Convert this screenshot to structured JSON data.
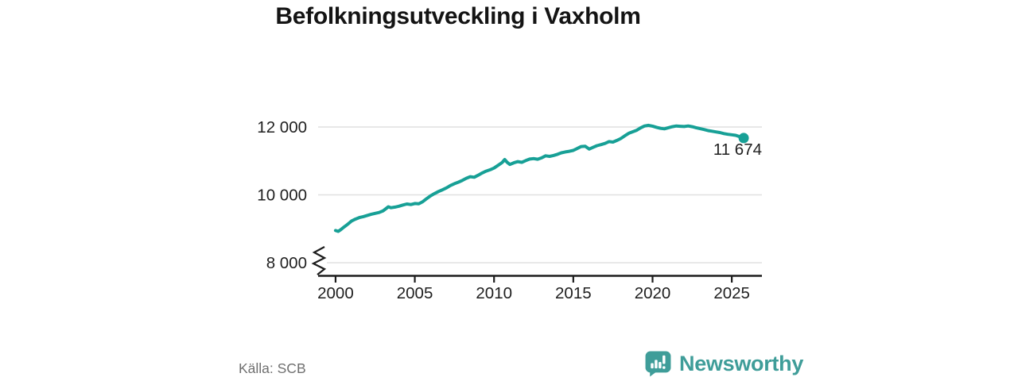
{
  "title": "Befolkningsutveckling i Vaxholm",
  "source": "Källa: SCB",
  "branding": {
    "name": "Newsworthy",
    "color": "#3f9d99"
  },
  "colors": {
    "accent": "#17a096",
    "grid": "#e0e0e0",
    "axis": "#1c1c1c",
    "label_text": "#1f1f1f",
    "annotation_text": "#1f1f1f",
    "source_text": "#707070",
    "title_text": "#141414",
    "background": "#ffffff"
  },
  "chart_data": {
    "type": "line",
    "title": "Befolkningsutveckling i Vaxholm",
    "xlabel": "",
    "ylabel": "",
    "grid": "horizontal",
    "legend": "none",
    "axis_break_at_bottom": true,
    "xlim": [
      1998.9,
      2026.9
    ],
    "ylim": [
      7626,
      12187
    ],
    "x_ticks": [
      2000,
      2005,
      2010,
      2015,
      2020,
      2025
    ],
    "y_ticks": [
      {
        "value": 8000,
        "label": "8 000"
      },
      {
        "value": 10000,
        "label": "10 000"
      },
      {
        "value": 12000,
        "label": "12 000"
      }
    ],
    "end_annotation": {
      "label": "11 674",
      "value": 11674,
      "x": 2025.75
    },
    "x": [
      2000.0,
      2000.17,
      2000.33,
      2000.5,
      2000.67,
      2000.83,
      2001.0,
      2001.25,
      2001.5,
      2001.75,
      2002.0,
      2002.25,
      2002.5,
      2002.75,
      2003.0,
      2003.17,
      2003.33,
      2003.5,
      2003.75,
      2004.0,
      2004.25,
      2004.5,
      2004.75,
      2005.0,
      2005.25,
      2005.5,
      2005.75,
      2006.0,
      2006.25,
      2006.5,
      2006.75,
      2007.0,
      2007.25,
      2007.5,
      2007.75,
      2008.0,
      2008.25,
      2008.5,
      2008.75,
      2009.0,
      2009.25,
      2009.5,
      2009.75,
      2010.0,
      2010.25,
      2010.5,
      2010.67,
      2010.83,
      2011.0,
      2011.25,
      2011.5,
      2011.75,
      2012.0,
      2012.25,
      2012.5,
      2012.75,
      2013.0,
      2013.25,
      2013.5,
      2013.75,
      2014.0,
      2014.25,
      2014.5,
      2014.75,
      2015.0,
      2015.25,
      2015.5,
      2015.75,
      2016.0,
      2016.25,
      2016.5,
      2016.75,
      2017.0,
      2017.25,
      2017.5,
      2017.75,
      2018.0,
      2018.25,
      2018.5,
      2018.75,
      2019.0,
      2019.25,
      2019.5,
      2019.75,
      2020.0,
      2020.25,
      2020.5,
      2020.75,
      2021.0,
      2021.25,
      2021.5,
      2021.75,
      2022.0,
      2022.25,
      2022.5,
      2022.75,
      2023.0,
      2023.25,
      2023.5,
      2023.75,
      2024.0,
      2024.25,
      2024.5,
      2024.75,
      2025.0,
      2025.25,
      2025.5,
      2025.75
    ],
    "y": [
      8950,
      8925,
      8975,
      9040,
      9100,
      9160,
      9225,
      9285,
      9330,
      9360,
      9395,
      9430,
      9455,
      9480,
      9530,
      9590,
      9650,
      9620,
      9640,
      9665,
      9700,
      9730,
      9715,
      9745,
      9735,
      9800,
      9890,
      9975,
      10040,
      10100,
      10150,
      10205,
      10275,
      10330,
      10375,
      10425,
      10490,
      10535,
      10520,
      10580,
      10645,
      10700,
      10740,
      10790,
      10870,
      10950,
      11040,
      10960,
      10895,
      10945,
      10980,
      10960,
      11010,
      11055,
      11070,
      11050,
      11090,
      11150,
      11135,
      11160,
      11195,
      11240,
      11265,
      11285,
      11310,
      11365,
      11425,
      11435,
      11350,
      11400,
      11450,
      11480,
      11515,
      11570,
      11555,
      11605,
      11660,
      11740,
      11815,
      11860,
      11905,
      11975,
      12030,
      12050,
      12025,
      11990,
      11960,
      11945,
      11980,
      12010,
      12030,
      12020,
      12015,
      12030,
      12010,
      11980,
      11950,
      11925,
      11895,
      11875,
      11855,
      11835,
      11805,
      11785,
      11770,
      11755,
      11715,
      11674
    ]
  }
}
